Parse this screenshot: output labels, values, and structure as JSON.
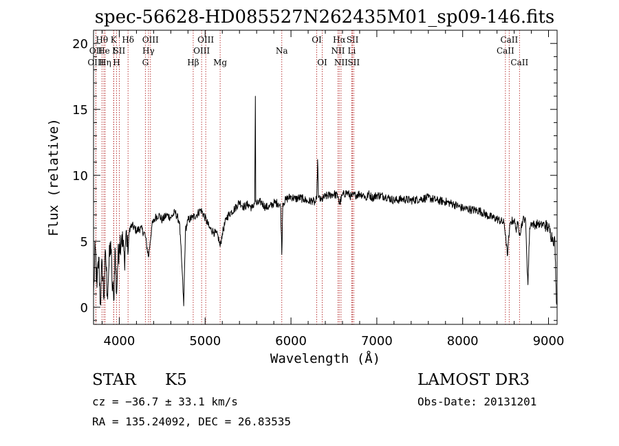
{
  "chart_data": {
    "type": "line",
    "title": "spec-56628-HD085527N262435M01_sp09-146.fits",
    "xlabel": "Wavelength (Å)",
    "ylabel": "Flux (relative)",
    "xlim": [
      3700,
      9100
    ],
    "ylim": [
      -1.3,
      21
    ],
    "xticks": [
      4000,
      5000,
      6000,
      7000,
      8000,
      9000
    ],
    "xtick_labels": [
      "4000",
      "5000",
      "6000",
      "7000",
      "8000",
      "9000"
    ],
    "yticks": [
      0,
      5,
      10,
      15,
      20
    ],
    "ytick_labels": [
      "0",
      "5",
      "10",
      "15",
      "20"
    ],
    "series": [
      {
        "name": "spectrum",
        "anchors": [
          [
            3700,
            1.0
          ],
          [
            3720,
            4.5
          ],
          [
            3740,
            1.5
          ],
          [
            3760,
            3.8
          ],
          [
            3780,
            0.2
          ],
          [
            3800,
            3.5
          ],
          [
            3820,
            0.6
          ],
          [
            3840,
            4.2
          ],
          [
            3860,
            1.0
          ],
          [
            3880,
            3.2
          ],
          [
            3900,
            5.0
          ],
          [
            3915,
            2.0
          ],
          [
            3935,
            0.5
          ],
          [
            3950,
            4.5
          ],
          [
            3968,
            1.0
          ],
          [
            3980,
            3.0
          ],
          [
            4000,
            4.8
          ],
          [
            4030,
            5.5
          ],
          [
            4060,
            3.5
          ],
          [
            4080,
            5.8
          ],
          [
            4100,
            4.0
          ],
          [
            4120,
            6.0
          ],
          [
            4150,
            6.2
          ],
          [
            4200,
            5.8
          ],
          [
            4250,
            6.0
          ],
          [
            4300,
            5.5
          ],
          [
            4340,
            3.8
          ],
          [
            4360,
            5.0
          ],
          [
            4380,
            6.2
          ],
          [
            4420,
            6.8
          ],
          [
            4460,
            7.0
          ],
          [
            4500,
            6.6
          ],
          [
            4550,
            7.0
          ],
          [
            4600,
            6.8
          ],
          [
            4650,
            7.2
          ],
          [
            4700,
            6.5
          ],
          [
            4730,
            3.0
          ],
          [
            4750,
            0.1
          ],
          [
            4770,
            5.8
          ],
          [
            4800,
            6.6
          ],
          [
            4850,
            6.8
          ],
          [
            4900,
            7.0
          ],
          [
            4950,
            7.4
          ],
          [
            5000,
            6.8
          ],
          [
            5050,
            6.0
          ],
          [
            5100,
            5.7
          ],
          [
            5150,
            5.4
          ],
          [
            5175,
            4.6
          ],
          [
            5200,
            5.6
          ],
          [
            5250,
            6.8
          ],
          [
            5300,
            7.2
          ],
          [
            5350,
            7.5
          ],
          [
            5400,
            8.0
          ],
          [
            5450,
            7.6
          ],
          [
            5500,
            7.8
          ],
          [
            5550,
            7.5
          ],
          [
            5577,
            8.0
          ],
          [
            5585,
            16.0
          ],
          [
            5590,
            8.0
          ],
          [
            5600,
            7.8
          ],
          [
            5650,
            8.0
          ],
          [
            5700,
            7.6
          ],
          [
            5750,
            7.6
          ],
          [
            5800,
            7.9
          ],
          [
            5850,
            7.9
          ],
          [
            5880,
            7.6
          ],
          [
            5893,
            4.0
          ],
          [
            5905,
            7.9
          ],
          [
            5950,
            8.2
          ],
          [
            6000,
            8.4
          ],
          [
            6050,
            8.2
          ],
          [
            6100,
            8.3
          ],
          [
            6150,
            8.2
          ],
          [
            6200,
            8.0
          ],
          [
            6250,
            8.1
          ],
          [
            6280,
            7.9
          ],
          [
            6300,
            8.2
          ],
          [
            6310,
            11.2
          ],
          [
            6320,
            8.3
          ],
          [
            6350,
            8.1
          ],
          [
            6400,
            8.4
          ],
          [
            6450,
            8.5
          ],
          [
            6500,
            8.6
          ],
          [
            6550,
            8.4
          ],
          [
            6563,
            7.8
          ],
          [
            6600,
            8.5
          ],
          [
            6650,
            8.7
          ],
          [
            6700,
            8.4
          ],
          [
            6750,
            8.5
          ],
          [
            6800,
            8.6
          ],
          [
            6850,
            8.5
          ],
          [
            6880,
            8.2
          ],
          [
            6900,
            8.6
          ],
          [
            6950,
            8.3
          ],
          [
            7000,
            8.5
          ],
          [
            7100,
            8.4
          ],
          [
            7200,
            8.1
          ],
          [
            7300,
            8.2
          ],
          [
            7400,
            8.1
          ],
          [
            7500,
            8.2
          ],
          [
            7600,
            8.3
          ],
          [
            7700,
            8.1
          ],
          [
            7800,
            8.0
          ],
          [
            7900,
            7.8
          ],
          [
            8000,
            7.5
          ],
          [
            8100,
            7.4
          ],
          [
            8200,
            7.3
          ],
          [
            8300,
            6.9
          ],
          [
            8400,
            6.7
          ],
          [
            8480,
            6.4
          ],
          [
            8500,
            5.5
          ],
          [
            8520,
            3.9
          ],
          [
            8545,
            5.8
          ],
          [
            8560,
            6.5
          ],
          [
            8600,
            6.6
          ],
          [
            8620,
            5.9
          ],
          [
            8640,
            6.3
          ],
          [
            8665,
            5.6
          ],
          [
            8700,
            6.6
          ],
          [
            8730,
            6.8
          ],
          [
            8760,
            1.7
          ],
          [
            8780,
            6.0
          ],
          [
            8800,
            6.4
          ],
          [
            8850,
            6.2
          ],
          [
            8880,
            6.4
          ],
          [
            8900,
            6.2
          ],
          [
            8950,
            6.3
          ],
          [
            9000,
            6.0
          ],
          [
            9050,
            5.2
          ],
          [
            9075,
            5.0
          ],
          [
            9085,
            2.0
          ],
          [
            9095,
            0.2
          ]
        ]
      }
    ],
    "spectral_lines": [
      {
        "label": "OII",
        "wavelength": 3727,
        "row": 2
      },
      {
        "label": "OIII",
        "wavelength": 3727,
        "row": 3
      },
      {
        "label": "Hθ",
        "wavelength": 3798,
        "row": 1
      },
      {
        "label": "He",
        "wavelength": 3820,
        "row": 2
      },
      {
        "label": "Hη",
        "wavelength": 3835,
        "row": 3
      },
      {
        "label": "K",
        "wavelength": 3934,
        "row": 1
      },
      {
        "label": "I",
        "wavelength": 3935,
        "row": 2
      },
      {
        "label": "H",
        "wavelength": 3968,
        "row": 3
      },
      {
        "label": "SII",
        "wavelength": 4000,
        "row": 2
      },
      {
        "label": "Hδ",
        "wavelength": 4102,
        "row": 1
      },
      {
        "label": "OIII",
        "wavelength": 4363,
        "row": 1
      },
      {
        "label": "Hγ",
        "wavelength": 4340,
        "row": 2
      },
      {
        "label": "G",
        "wavelength": 4304,
        "row": 3
      },
      {
        "label": "Hβ",
        "wavelength": 4861,
        "row": 3
      },
      {
        "label": "OIII",
        "wavelength": 4959,
        "row": 2
      },
      {
        "label": "OIII",
        "wavelength": 5007,
        "row": 1
      },
      {
        "label": "Mg",
        "wavelength": 5175,
        "row": 3
      },
      {
        "label": "Na",
        "wavelength": 5893,
        "row": 2
      },
      {
        "label": "OI",
        "wavelength": 6300,
        "row": 1
      },
      {
        "label": "OI",
        "wavelength": 6364,
        "row": 3
      },
      {
        "label": "Hα",
        "wavelength": 6563,
        "row": 1
      },
      {
        "label": "NII",
        "wavelength": 6548,
        "row": 2
      },
      {
        "label": "NII",
        "wavelength": 6583,
        "row": 3
      },
      {
        "label": "SII",
        "wavelength": 6717,
        "row": 1
      },
      {
        "label": "Li",
        "wavelength": 6708,
        "row": 2
      },
      {
        "label": "SII",
        "wavelength": 6731,
        "row": 3
      },
      {
        "label": "CaII",
        "wavelength": 8542,
        "row": 1
      },
      {
        "label": "CaII",
        "wavelength": 8498,
        "row": 2
      },
      {
        "label": "CaII",
        "wavelength": 8662,
        "row": 3
      }
    ]
  },
  "info": {
    "object_class": "STAR",
    "subclass": "K5",
    "survey": "LAMOST DR3",
    "cz": "cz = −36.7 ± 33.1 km/s",
    "obs_date": "Obs-Date: 20131201",
    "coords": "RA = 135.24092, DEC =  26.83535"
  }
}
